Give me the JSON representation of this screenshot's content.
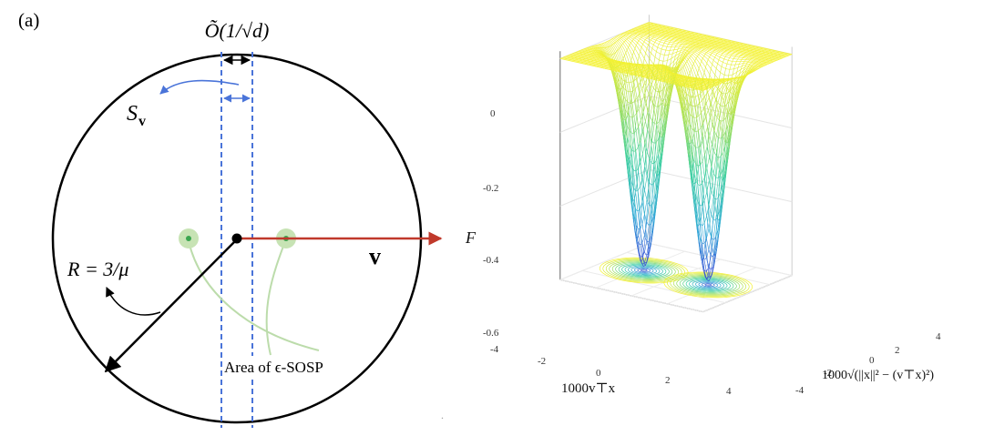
{
  "left_panel": {
    "panel_label": "(a)",
    "width_annotation": "Õ(1/√d)",
    "set_label_main": "S",
    "set_label_sub": "v",
    "direction_label": "v",
    "radius_label": "R = 3/μ",
    "area_label": "Area of ϵ-SOSP",
    "colors": {
      "circle": "#000000",
      "dashed": "#4a74d9",
      "direction_arrow": "#c0392b",
      "sosp_point_fill": "#c7e3b4",
      "sosp_point_dot": "#3aa64f",
      "curve": "#bcdcab"
    }
  },
  "right_panel": {
    "z_label": "F",
    "x_label": "1000v⊤x",
    "y_label": "1000√(||x||² − (v⊤x)²)",
    "z_ticks": [
      "0",
      "-0.2",
      "-0.4",
      "-0.6"
    ],
    "x_ticks": [
      "-4",
      "-2",
      "0",
      "2",
      "4"
    ],
    "y_ticks": [
      "-4",
      "-2",
      "0",
      "2",
      "4"
    ],
    "colormap": [
      "#3b3bd6",
      "#2ea9d6",
      "#3ccfa0",
      "#a8e05a",
      "#f4f233"
    ]
  },
  "stray_mark": "."
}
